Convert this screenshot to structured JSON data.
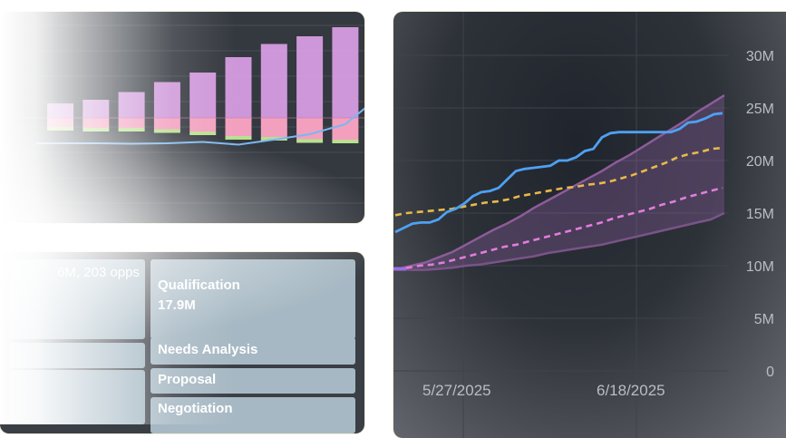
{
  "chart_data": [
    {
      "type": "bar",
      "bars": [
        {
          "top": 0.32,
          "mid": 0.2,
          "bot": 0.0
        },
        {
          "top": 0.4,
          "mid": 0.22,
          "bot": 0.02
        },
        {
          "top": 0.57,
          "mid": 0.22,
          "bot": 0.02
        },
        {
          "top": 0.79,
          "mid": 0.25,
          "bot": 0.03
        },
        {
          "top": 1.0,
          "mid": 0.3,
          "bot": 0.04
        },
        {
          "top": 1.34,
          "mid": 0.4,
          "bot": 0.04
        },
        {
          "top": 1.63,
          "mid": 0.42,
          "bot": 0.05
        },
        {
          "top": 1.8,
          "mid": 0.47,
          "bot": 0.05
        },
        {
          "top": 2.0,
          "mid": 0.48,
          "bot": 0.06
        },
        {
          "top": 2.12,
          "mid": 0.24,
          "bot": 0.03
        }
      ],
      "line": [
        0.0,
        0.0,
        -0.01,
        0.0,
        0.03,
        -0.03,
        0.08,
        0.2,
        0.42,
        1.06
      ],
      "ylim": [
        -0.6,
        2.3
      ]
    },
    {
      "type": "line",
      "y_ticks": [
        "0",
        "5M",
        "10M",
        "15M",
        "20M",
        "25M",
        "30M"
      ],
      "x_ticks": [
        "5/27/2025",
        "6/18/2025"
      ],
      "ylim": [
        0,
        30
      ],
      "series_actual": [
        13.2,
        13.6,
        14.0,
        14.1,
        14.1,
        14.4,
        15.1,
        15.4,
        15.9,
        16.6,
        17.0,
        17.1,
        17.4,
        18.2,
        19.0,
        19.2,
        19.3,
        19.4,
        19.5,
        20.0,
        20.0,
        20.3,
        20.9,
        21.1,
        22.2,
        22.6,
        22.7,
        22.7,
        22.7,
        22.7,
        22.7,
        22.7,
        22.7,
        23.0,
        23.6,
        23.7,
        24.0,
        24.4,
        24.5
      ],
      "series_dashed_yellow": [
        14.8,
        15.0,
        15.1,
        15.2,
        15.3,
        15.4,
        15.6,
        15.8,
        16.0,
        16.1,
        16.3,
        16.6,
        16.8,
        17.0,
        17.2,
        17.4,
        17.5,
        17.7,
        17.8,
        18.0,
        18.3,
        18.6,
        19.0,
        19.4,
        19.8,
        20.3,
        20.6,
        20.8,
        21.1,
        21.2
      ],
      "series_dashed_pink": [
        9.7,
        9.8,
        10.0,
        10.1,
        10.3,
        10.6,
        10.9,
        11.2,
        11.5,
        11.8,
        12.0,
        12.3,
        12.6,
        12.9,
        13.2,
        13.5,
        13.8,
        14.1,
        14.5,
        14.8,
        15.1,
        15.4,
        15.8,
        16.1,
        16.5,
        16.8,
        17.1,
        17.4
      ],
      "band_upper": [
        9.7,
        10.0,
        10.3,
        10.8,
        11.3,
        12.0,
        12.7,
        13.4,
        14.0,
        14.7,
        15.5,
        16.2,
        16.9,
        17.6,
        18.3,
        19.0,
        19.8,
        20.5,
        21.3,
        22.1,
        22.9,
        23.7,
        24.6,
        25.4,
        26.2
      ],
      "band_lower": [
        9.7,
        9.6,
        9.6,
        9.7,
        9.8,
        10.0,
        10.1,
        10.3,
        10.5,
        10.7,
        10.9,
        11.2,
        11.4,
        11.6,
        11.8,
        12.0,
        12.3,
        12.6,
        12.9,
        13.2,
        13.5,
        13.8,
        14.1,
        14.4,
        15.0
      ]
    }
  ],
  "pipeline": {
    "summary": "6M, 203 opps",
    "stages": [
      {
        "name": "Qualification",
        "value": "17.9M"
      },
      {
        "name": "Needs Analysis",
        "value": ""
      },
      {
        "name": "Proposal",
        "value": ""
      },
      {
        "name": "Negotiation",
        "value": ""
      }
    ]
  },
  "colors": {
    "actual": "#4ea1f3",
    "forecast": "#e8b94a",
    "target": "#e27ddb",
    "band": "#8a5fa0",
    "bar_top": "#d79ce2",
    "bar_mid": "#f3a0bf",
    "bar_bot": "#b9e08f"
  }
}
